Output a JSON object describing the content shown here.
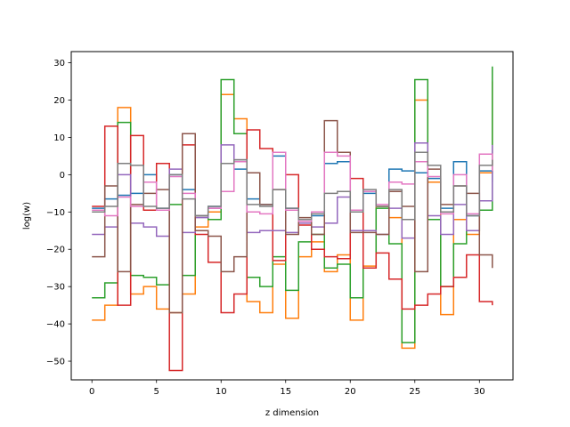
{
  "chart_data": {
    "type": "line",
    "step": "post",
    "xlabel": "z dimension",
    "ylabel": "log(w)",
    "xlim": [
      -1.6,
      32.6
    ],
    "ylim": [
      -55,
      33
    ],
    "xticks": [
      0,
      5,
      10,
      15,
      20,
      25,
      30
    ],
    "yticks": [
      -50,
      -40,
      -30,
      -20,
      -10,
      0,
      10,
      20,
      30
    ],
    "xtick_labels": [
      "0",
      "5",
      "10",
      "15",
      "20",
      "25",
      "30"
    ],
    "ytick_labels": [
      "−50",
      "−40",
      "−30",
      "−20",
      "−10",
      "0",
      "10",
      "20",
      "30"
    ],
    "x": [
      0,
      1,
      2,
      3,
      4,
      5,
      6,
      7,
      8,
      9,
      10,
      11,
      12,
      13,
      14,
      15,
      16,
      17,
      18,
      19,
      20,
      21,
      22,
      23,
      24,
      25,
      26,
      27,
      28,
      29,
      30,
      31
    ],
    "series": [
      {
        "color": "#1f77b4",
        "values": [
          -9,
          -6.5,
          -5.5,
          -5,
          0,
          -9,
          0,
          -4,
          -11,
          -8.5,
          3,
          1.5,
          -6.5,
          -8,
          5,
          -9,
          -12,
          -11,
          3,
          3.5,
          -10,
          -5,
          -8.5,
          1.5,
          1,
          0.5,
          -1,
          -9,
          3.5,
          -11,
          1,
          -2
        ]
      },
      {
        "color": "#ff7f0e",
        "values": [
          -39,
          -35,
          18,
          -32,
          -30,
          -36,
          -37,
          -32,
          -14,
          -10,
          21.5,
          15,
          -34,
          -37,
          -24,
          -38.5,
          -22,
          -18,
          -26,
          -21.5,
          -39,
          -24.5,
          -8.5,
          -11.5,
          -46.5,
          20,
          -2,
          -37.5,
          -12,
          -16,
          0.5,
          25
        ]
      },
      {
        "color": "#2ca02c",
        "values": [
          -33,
          -29,
          14,
          -27,
          -27.5,
          -29.5,
          -8,
          -27,
          -11,
          -12,
          25.5,
          11,
          -27.5,
          -30,
          -22,
          -31,
          -18,
          -16,
          -25,
          -24,
          -33,
          -25,
          -9,
          -18.5,
          -45,
          25.5,
          -12,
          -30,
          -18.5,
          -15,
          -9.5,
          29
        ]
      },
      {
        "color": "#d62728",
        "values": [
          -8.5,
          13,
          -35,
          10.5,
          -9.5,
          3,
          -52.5,
          8,
          -16,
          -23.5,
          -37,
          -32,
          12,
          7,
          -23,
          0,
          -13.5,
          -20,
          -22,
          -22.5,
          -1,
          -25,
          -21,
          -28,
          -36,
          -35,
          -32,
          -30,
          -27.5,
          -21.5,
          -34,
          -35
        ]
      },
      {
        "color": "#9467bd",
        "values": [
          -16,
          -14,
          0,
          -13,
          -14,
          -16.5,
          1.5,
          -15.5,
          -11.5,
          -9,
          8,
          4,
          -15.5,
          -15,
          -15,
          -15.5,
          -13,
          -14,
          -13,
          -6,
          -15,
          -15,
          -16,
          -9,
          -17,
          8.5,
          -11,
          -16,
          -8,
          -15,
          -7,
          8
        ]
      },
      {
        "color": "#8c564b",
        "values": [
          -22,
          -3,
          -26,
          -8,
          -5,
          -4,
          -37,
          11,
          -15,
          -16.5,
          -26,
          -22,
          0.5,
          -8,
          -4,
          -16,
          -11.5,
          -16,
          14.5,
          6,
          -15.5,
          -15.5,
          -16,
          -4.5,
          -8.5,
          -26,
          1.5,
          -8,
          -3,
          -5,
          -21.5,
          -25
        ]
      },
      {
        "color": "#e377c2",
        "values": [
          -9.5,
          -11,
          -6,
          -8.5,
          -2,
          -9.5,
          -0.5,
          -5,
          -11,
          -9,
          -4.5,
          3.5,
          -10,
          -10.5,
          6,
          -9.5,
          -12.5,
          -10,
          6,
          5,
          -9.5,
          -4.5,
          -8,
          -2,
          -2.5,
          3.5,
          -0.5,
          -10.5,
          0,
          -10.5,
          5.5,
          1
        ]
      },
      {
        "color": "#7f7f7f",
        "values": [
          -10,
          -8.5,
          3,
          2.5,
          -8.5,
          -9,
          0,
          -6.5,
          -11,
          -8.5,
          3,
          4,
          -8,
          -8.5,
          -4,
          -9,
          -12,
          -10.5,
          -5,
          -4.5,
          -10,
          -4,
          -8.5,
          -4,
          -12,
          6,
          2.5,
          -10,
          -3,
          -11,
          2.5,
          4
        ]
      }
    ]
  }
}
